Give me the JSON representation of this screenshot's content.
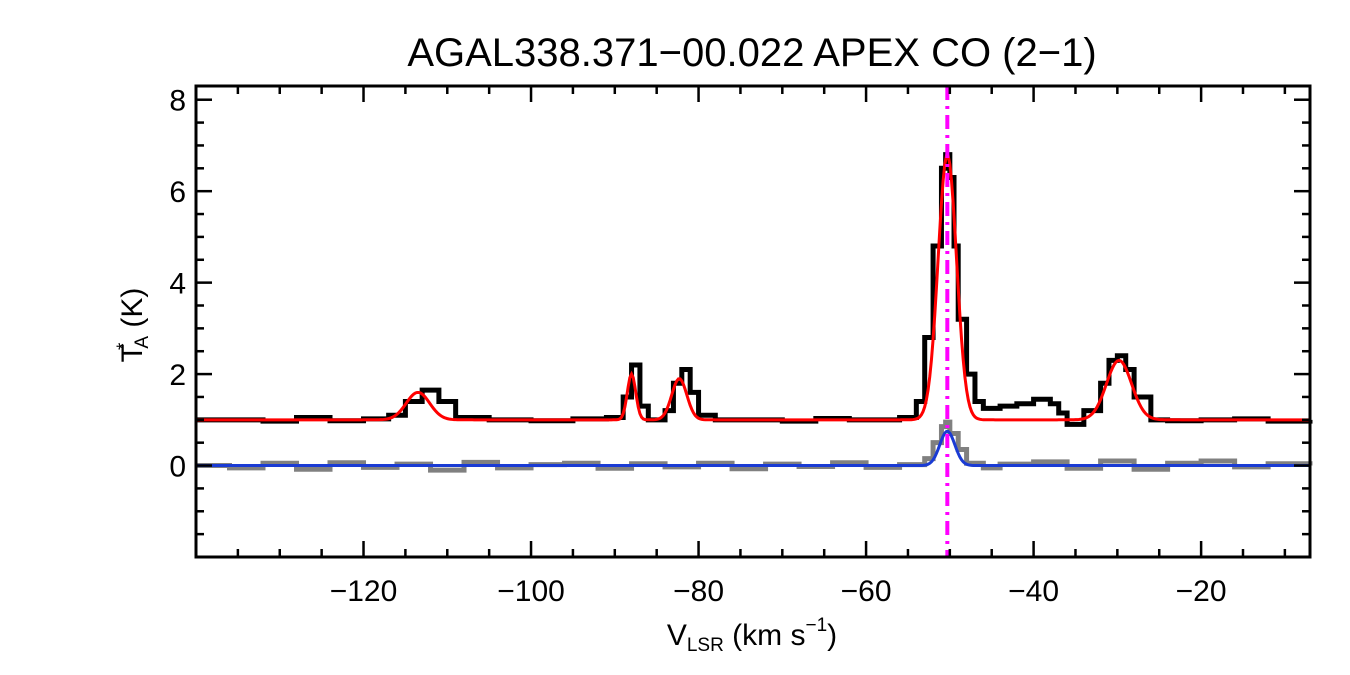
{
  "chart_data": {
    "type": "line",
    "title": "AGAL338.371−00.022  APEX CO (2−1)",
    "xlabel": {
      "main": "V",
      "sub": "LSR",
      "rest": " (km s",
      "sup": "−1",
      "end": ")"
    },
    "ylabel": {
      "main": "T",
      "sup": "*",
      "sub": "A",
      "rest": " (K)"
    },
    "xlim": [
      -140,
      -7
    ],
    "ylim": [
      -2,
      8.3
    ],
    "xticks": [
      -120,
      -100,
      -80,
      -60,
      -40,
      -20
    ],
    "xtick_labels": [
      "−120",
      "−100",
      "−80",
      "−60",
      "−40",
      "−20"
    ],
    "yticks": [
      0,
      2,
      4,
      6,
      8
    ],
    "ytick_labels": [
      "0",
      "2",
      "4",
      "6",
      "8"
    ],
    "grid": false,
    "reference_line": {
      "x": -50.3,
      "color": "#ff00ff",
      "style": "dash-dot"
    },
    "series": [
      {
        "style": "step",
        "color": "#000000",
        "x": [
          -140,
          -136,
          -132,
          -128,
          -124,
          -120,
          -117,
          -115,
          -113,
          -111,
          -109,
          -105,
          -100,
          -95,
          -91,
          -89,
          -88,
          -87,
          -86,
          -84,
          -83,
          -82,
          -81,
          -80,
          -78,
          -74,
          -70,
          -66,
          -62,
          -58,
          -56,
          -54,
          -53,
          -52,
          -51,
          -50.5,
          -50,
          -49.5,
          -49,
          -48,
          -47,
          -46,
          -44,
          -42,
          -40,
          -38,
          -37,
          -36,
          -34,
          -32,
          -31,
          -30,
          -29,
          -28,
          -26,
          -24,
          -20,
          -16,
          -12,
          -7
        ],
        "y": [
          1.0,
          1.0,
          0.97,
          1.05,
          0.98,
          1.02,
          1.1,
          1.4,
          1.65,
          1.4,
          1.05,
          1.0,
          0.98,
          1.02,
          1.05,
          1.5,
          2.2,
          1.3,
          1.0,
          1.2,
          1.8,
          2.1,
          1.6,
          1.1,
          1.0,
          1.0,
          0.97,
          1.03,
          1.0,
          1.0,
          1.05,
          1.4,
          2.8,
          4.8,
          6.5,
          6.8,
          6.3,
          4.8,
          3.2,
          2.0,
          1.4,
          1.25,
          1.3,
          1.35,
          1.45,
          1.35,
          1.15,
          0.9,
          1.2,
          1.8,
          2.3,
          2.4,
          2.1,
          1.5,
          1.0,
          0.98,
          1.0,
          1.02,
          0.97,
          1.0
        ]
      },
      {
        "style": "step",
        "color": "#808080",
        "x": [
          -140,
          -136,
          -132,
          -128,
          -124,
          -120,
          -116,
          -112,
          -108,
          -104,
          -100,
          -96,
          -92,
          -88,
          -84,
          -80,
          -76,
          -72,
          -68,
          -64,
          -60,
          -56,
          -53,
          -52,
          -51,
          -50.5,
          -50,
          -49,
          -48,
          -46,
          -44,
          -40,
          -36,
          -32,
          -28,
          -24,
          -20,
          -16,
          -12,
          -7
        ],
        "y": [
          0.0,
          -0.05,
          0.05,
          -0.08,
          0.06,
          -0.04,
          0.03,
          -0.1,
          0.07,
          -0.05,
          0.02,
          0.05,
          -0.06,
          0.04,
          -0.03,
          0.05,
          -0.07,
          0.03,
          -0.02,
          0.06,
          -0.04,
          0.02,
          0.15,
          0.5,
          0.85,
          0.95,
          0.7,
          0.35,
          0.05,
          -0.05,
          0.03,
          0.08,
          -0.06,
          0.1,
          -0.08,
          0.05,
          0.1,
          -0.03,
          0.04,
          0.0
        ]
      }
    ],
    "fits": [
      {
        "color": "#ff0000",
        "baseline": 1.0,
        "components": [
          {
            "amp": 0.6,
            "center": -113.5,
            "sigma": 1.4
          },
          {
            "amp": 1.0,
            "center": -88.0,
            "sigma": 0.5
          },
          {
            "amp": 0.9,
            "center": -82.3,
            "sigma": 0.9
          },
          {
            "amp": 5.8,
            "center": -50.3,
            "sigma": 1.1
          },
          {
            "amp": 1.3,
            "center": -29.8,
            "sigma": 1.5
          }
        ]
      },
      {
        "color": "#1a3bd4",
        "baseline": 0.0,
        "components": [
          {
            "amp": 0.75,
            "center": -50.3,
            "sigma": 0.9
          }
        ]
      }
    ]
  }
}
